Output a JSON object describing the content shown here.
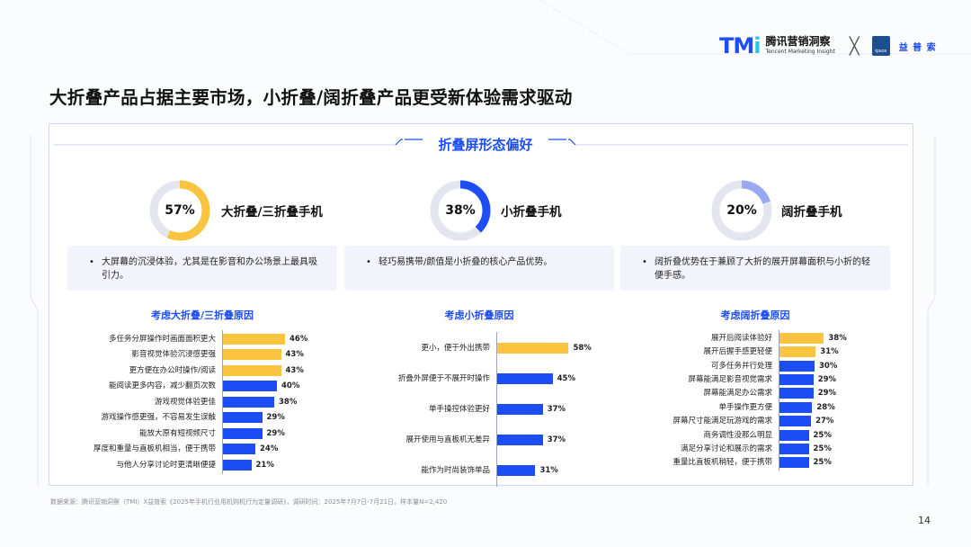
{
  "header": {
    "tmi_mark": "TM",
    "tmi_mark_i": "i",
    "tmi_cn": "腾讯营销洞察",
    "tmi_en": "Tencent Marketing Insight",
    "separator": "╳",
    "ipsos_box": "Ipsos",
    "ipsos_cn": "益 普 索"
  },
  "page_title": "大折叠产品占据主要市场，小折叠/阔折叠产品更受新体验需求驱动",
  "section_title": "折叠屏形态偏好",
  "colors": {
    "accent": "#1d4ef5",
    "highlight": "#f9c43f",
    "ring_track": "#e3e6ee"
  },
  "cards": [
    {
      "pct_label": "57%",
      "pct": 57,
      "ring_color": "#f9c43f",
      "title": "大折叠/三折叠手机",
      "bullet": "•",
      "desc": "大屏幕的沉浸体验，尤其是在影音和办公场景上最具吸引力。",
      "reason_title": "考虑大折叠/三折叠原因"
    },
    {
      "pct_label": "38%",
      "pct": 38,
      "ring_color": "#1d4ef5",
      "title": "小折叠手机",
      "bullet": "•",
      "desc": "轻巧易携带/颜值是小折叠的核心产品优势。",
      "reason_title": "考虑小折叠原因"
    },
    {
      "pct_label": "20%",
      "pct": 20,
      "ring_color": "#9aa8ef",
      "title": "阔折叠手机",
      "bullet": "•",
      "desc": "阔折叠优势在于兼顾了大折的展开屏幕面积与小折的轻便手感。",
      "reason_title": "考虑阔折叠原因"
    }
  ],
  "chart_data": [
    {
      "type": "bar",
      "title": "考虑大折叠/三折叠原因",
      "categories": [
        "多任务分屏操作时画面面积更大",
        "影音视觉体验沉浸感更强",
        "更方便在办公时操作/阅读",
        "能阅读更多内容，减少翻页次数",
        "游戏视觉体验更佳",
        "游戏操作感更强，不容易发生误触",
        "能放大原有短视频尺寸",
        "厚度和重量与直板机相当，便于携带",
        "与他人分享讨论时更清晰便捷"
      ],
      "values": [
        46,
        43,
        43,
        40,
        38,
        29,
        29,
        24,
        21
      ],
      "value_labels": [
        "46%",
        "43%",
        "43%",
        "40%",
        "38%",
        "29%",
        "29%",
        "24%",
        "21%"
      ],
      "highlight_count": 3
    },
    {
      "type": "bar",
      "title": "考虑小折叠原因",
      "categories": [
        "更小，便于外出携带",
        "折叠外屏便于不展开时操作",
        "单手操控体验更好",
        "展开使用与直板机无差异",
        "能作为时尚装饰单品"
      ],
      "values": [
        58,
        45,
        37,
        37,
        31
      ],
      "value_labels": [
        "58%",
        "45%",
        "37%",
        "37%",
        "31%"
      ],
      "highlight_count": 1
    },
    {
      "type": "bar",
      "title": "考虑阔折叠原因",
      "categories": [
        "展开后阅读体验好",
        "展开后握手感更轻便",
        "可多任务并行处理",
        "屏幕能满足影音视觉需求",
        "屏幕能满足办公需求",
        "单手操作更方便",
        "屏幕尺寸能满足玩游戏的需求",
        "商务调性没那么明显",
        "满足分享讨论和展示的需求",
        "重量比直板机稍轻，便于携带"
      ],
      "values": [
        38,
        31,
        30,
        29,
        29,
        28,
        27,
        25,
        25,
        25
      ],
      "value_labels": [
        "38%",
        "31%",
        "30%",
        "29%",
        "29%",
        "28%",
        "27%",
        "25%",
        "25%",
        "25%"
      ],
      "highlight_count": 2
    }
  ],
  "footnote": "数据来源：腾讯营销洞察（TMI）X益普索《2025年手机行业用机购机行为定量调研》，调研时间：2025年7月7日-7月21日，样本量N=2,420",
  "page_number": "14"
}
